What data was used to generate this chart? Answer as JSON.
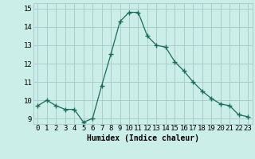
{
  "x": [
    0,
    1,
    2,
    3,
    4,
    5,
    6,
    7,
    8,
    9,
    10,
    11,
    12,
    13,
    14,
    15,
    16,
    17,
    18,
    19,
    20,
    21,
    22,
    23
  ],
  "y": [
    9.7,
    10.0,
    9.7,
    9.5,
    9.5,
    8.8,
    9.0,
    10.8,
    12.5,
    14.3,
    14.8,
    14.8,
    13.5,
    13.0,
    12.9,
    12.1,
    11.6,
    11.0,
    10.5,
    10.1,
    9.8,
    9.7,
    9.2,
    9.1
  ],
  "xlabel": "Humidex (Indice chaleur)",
  "xlim": [
    -0.5,
    23.5
  ],
  "ylim": [
    8.7,
    15.3
  ],
  "yticks": [
    9,
    10,
    11,
    12,
    13,
    14,
    15
  ],
  "xticks": [
    0,
    1,
    2,
    3,
    4,
    5,
    6,
    7,
    8,
    9,
    10,
    11,
    12,
    13,
    14,
    15,
    16,
    17,
    18,
    19,
    20,
    21,
    22,
    23
  ],
  "line_color": "#1a6b5a",
  "marker": "+",
  "marker_size": 4,
  "bg_color": "#cceee8",
  "grid_color": "#aacccc",
  "label_fontsize": 7,
  "tick_fontsize": 6.5
}
